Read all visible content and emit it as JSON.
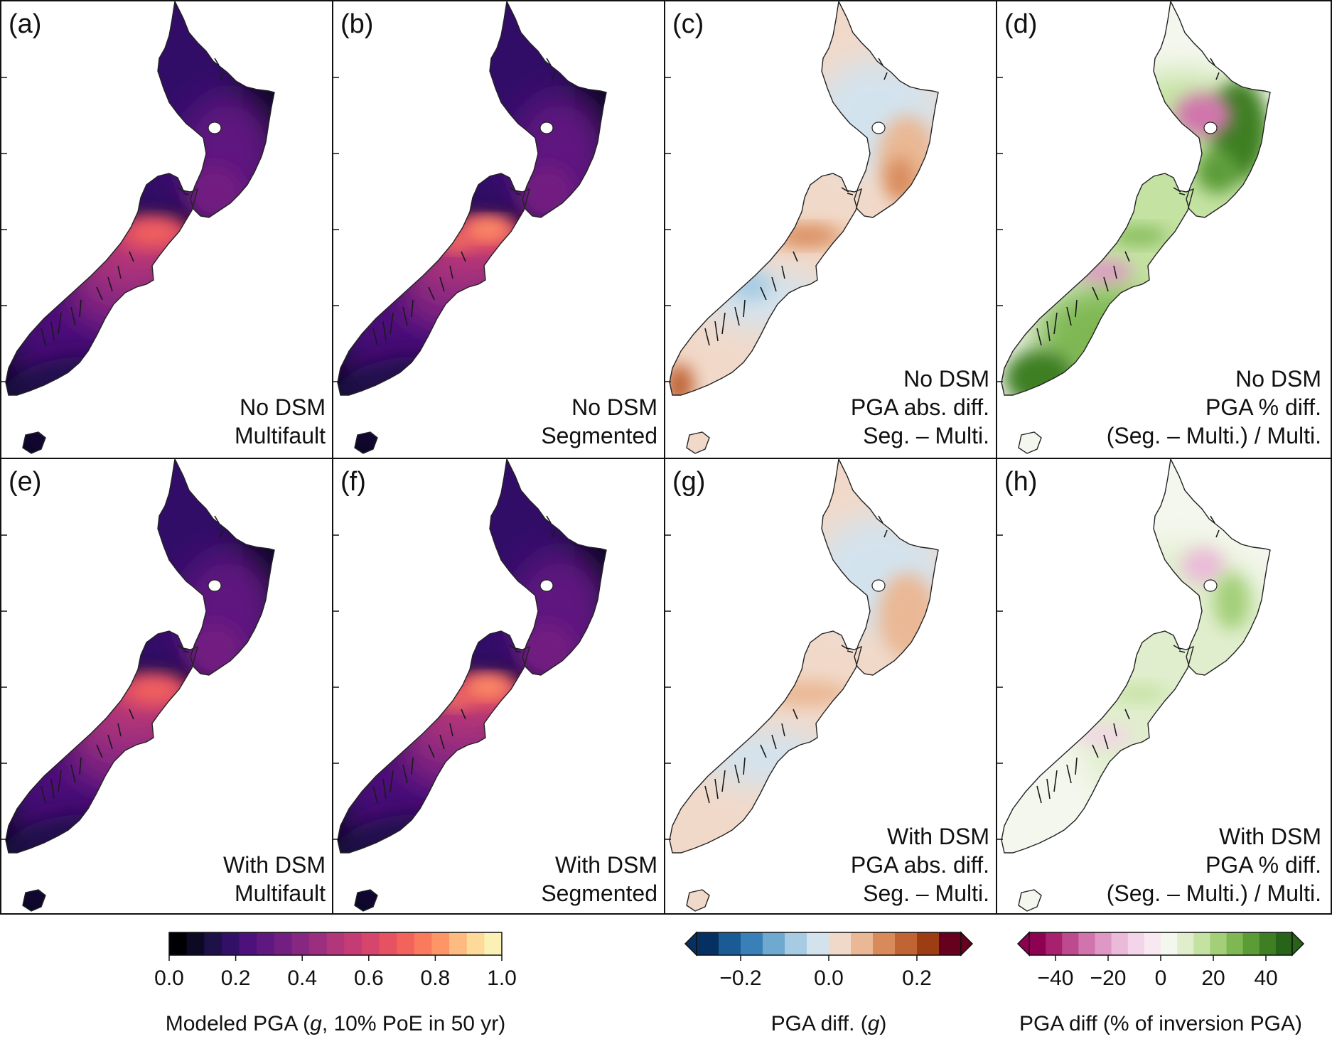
{
  "figure": {
    "panels": [
      {
        "id": "a",
        "label": "(a)",
        "lines": [
          "No DSM",
          "Multifault"
        ],
        "style": "pga",
        "field": "multi"
      },
      {
        "id": "b",
        "label": "(b)",
        "lines": [
          "No DSM",
          "Segmented"
        ],
        "style": "pga",
        "field": "seg"
      },
      {
        "id": "c",
        "label": "(c)",
        "lines": [
          "No DSM",
          "PGA abs. diff.",
          "Seg. – Multi."
        ],
        "style": "absdiff",
        "field": "strong"
      },
      {
        "id": "d",
        "label": "(d)",
        "lines": [
          "No DSM",
          "PGA % diff.",
          "(Seg. – Multi.) / Multi."
        ],
        "style": "pctdiff",
        "field": "strong"
      },
      {
        "id": "e",
        "label": "(e)",
        "lines": [
          "With DSM",
          "Multifault"
        ],
        "style": "pga",
        "field": "multi"
      },
      {
        "id": "f",
        "label": "(f)",
        "lines": [
          "With DSM",
          "Segmented"
        ],
        "style": "pga",
        "field": "seg"
      },
      {
        "id": "g",
        "label": "(g)",
        "lines": [
          "With DSM",
          "PGA abs. diff.",
          "Seg. – Multi."
        ],
        "style": "absdiff",
        "field": "weak"
      },
      {
        "id": "h",
        "label": "(h)",
        "lines": [
          "With DSM",
          "PGA % diff.",
          "(Seg. – Multi.) / Multi."
        ],
        "style": "pctdiff",
        "field": "weak"
      }
    ],
    "colorbars": [
      {
        "id": "pga",
        "title_parts": [
          "Modeled PGA (",
          "g",
          ", 10% PoE in 50 yr)"
        ],
        "ticks": [
          "0.0",
          "0.2",
          "0.4",
          "0.6",
          "0.8",
          "1.0"
        ],
        "range": [
          0.0,
          1.0
        ],
        "arrows": false,
        "colors": [
          "#000004",
          "#0b0924",
          "#1d1147",
          "#331067",
          "#4c117a",
          "#5f187f",
          "#721f81",
          "#862781",
          "#9b2e7e",
          "#b1367a",
          "#c53c74",
          "#d6456c",
          "#e75263",
          "#f2635c",
          "#f97a5d",
          "#fd9567",
          "#febb81",
          "#fdd99a",
          "#fcf1b5"
        ]
      },
      {
        "id": "absdiff",
        "title_parts": [
          "PGA diff. (",
          "g",
          ")"
        ],
        "ticks": [
          "−0.2",
          "0.0",
          "0.2"
        ],
        "range": [
          -0.3,
          0.3
        ],
        "arrows": true,
        "colors": [
          "#053061",
          "#1a5b96",
          "#3a80b8",
          "#70a9cf",
          "#a6cbe2",
          "#d3e3ee",
          "#f1d9c9",
          "#eab894",
          "#d88a5b",
          "#c06434",
          "#9c3d13",
          "#67001f"
        ]
      },
      {
        "id": "pctdiff",
        "title_parts": [
          "PGA diff (% of inversion PGA)",
          "",
          ""
        ],
        "ticks": [
          "−40",
          "−20",
          "0",
          "20",
          "40"
        ],
        "range": [
          -50,
          50
        ],
        "arrows": true,
        "colors": [
          "#8e0152",
          "#a8216f",
          "#bd4a8e",
          "#d174ad",
          "#df98c6",
          "#ebbad9",
          "#f4d4e8",
          "#f8e9f0",
          "#f4f7ee",
          "#e0eecd",
          "#c4e2a2",
          "#a3cf78",
          "#7fb853",
          "#5b9c37",
          "#3e7f24",
          "#276419"
        ]
      }
    ]
  }
}
